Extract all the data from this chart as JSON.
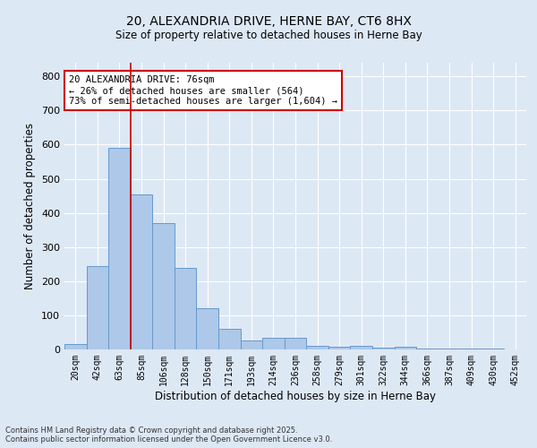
{
  "title_line1": "20, ALEXANDRIA DRIVE, HERNE BAY, CT6 8HX",
  "title_line2": "Size of property relative to detached houses in Herne Bay",
  "xlabel": "Distribution of detached houses by size in Herne Bay",
  "ylabel": "Number of detached properties",
  "categories": [
    "20sqm",
    "42sqm",
    "63sqm",
    "85sqm",
    "106sqm",
    "128sqm",
    "150sqm",
    "171sqm",
    "193sqm",
    "214sqm",
    "236sqm",
    "258sqm",
    "279sqm",
    "301sqm",
    "322sqm",
    "344sqm",
    "366sqm",
    "387sqm",
    "409sqm",
    "430sqm",
    "452sqm"
  ],
  "values": [
    15,
    245,
    590,
    455,
    370,
    240,
    120,
    60,
    25,
    35,
    35,
    10,
    8,
    10,
    5,
    8,
    3,
    3,
    2,
    2,
    1
  ],
  "bar_color": "#adc8e8",
  "bar_edge_color": "#6699cc",
  "vline_color": "#cc0000",
  "vline_pos": 2.5,
  "background_color": "#dde8f5",
  "annotation_text_line1": "20 ALEXANDRIA DRIVE: 76sqm",
  "annotation_text_line2": "← 26% of detached houses are smaller (564)",
  "annotation_text_line3": "73% of semi-detached houses are larger (1,604) →",
  "annotation_box_color": "#ffffff",
  "annotation_box_edge": "#cc0000",
  "footer_line1": "Contains HM Land Registry data © Crown copyright and database right 2025.",
  "footer_line2": "Contains public sector information licensed under the Open Government Licence v3.0.",
  "ylim": [
    0,
    840
  ],
  "yticks": [
    0,
    100,
    200,
    300,
    400,
    500,
    600,
    700,
    800
  ]
}
